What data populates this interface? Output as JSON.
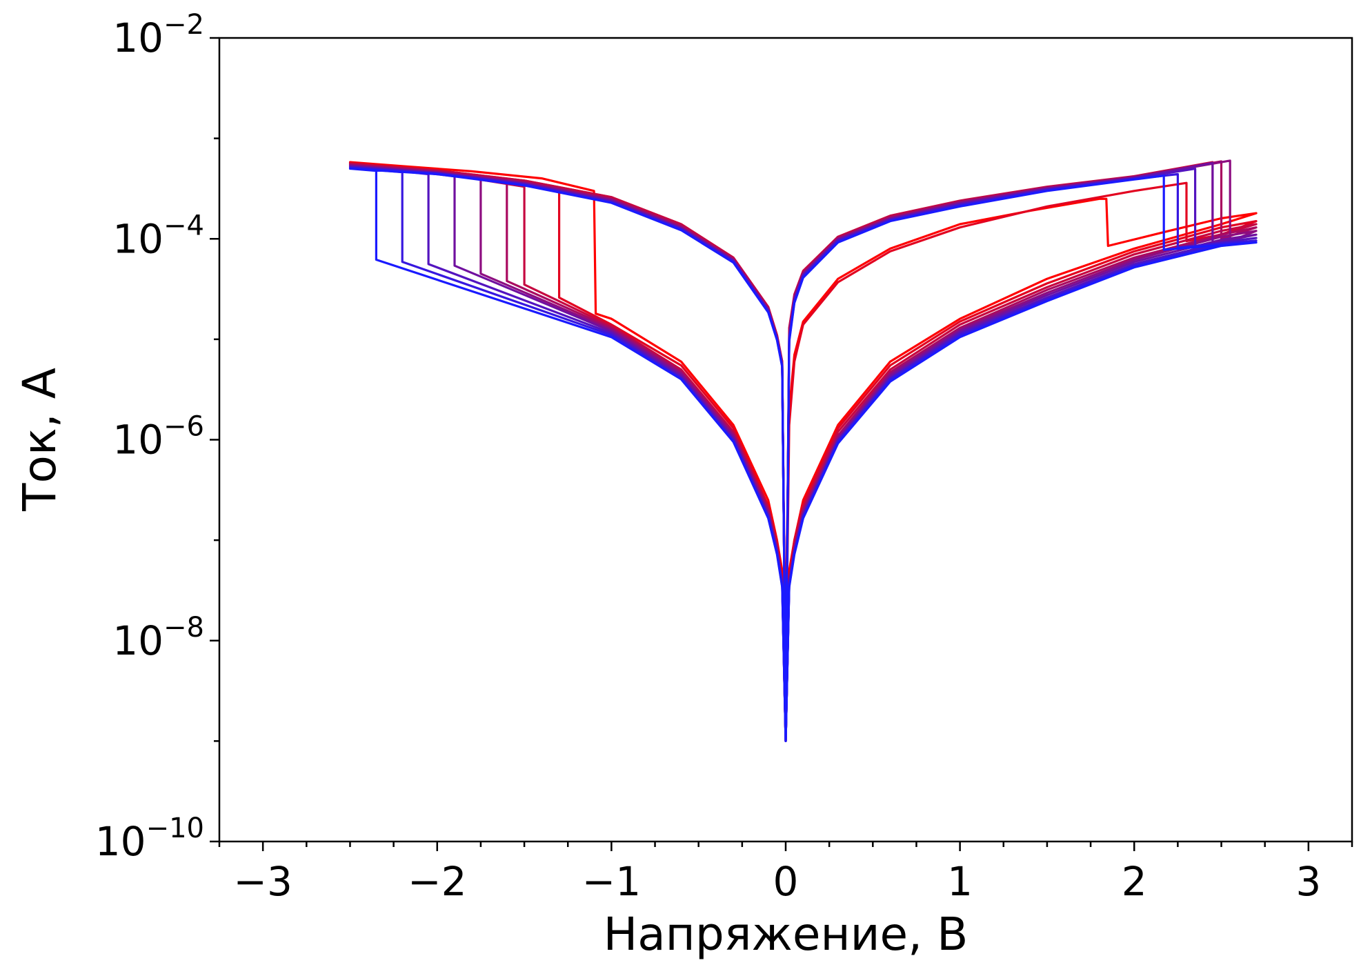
{
  "chart_data": {
    "type": "line",
    "title": "",
    "xlabel": "Напряжение, В",
    "ylabel": "Ток, А",
    "xlim": [
      -3.25,
      3.25
    ],
    "ylim": [
      1e-10,
      0.01
    ],
    "yscale": "log",
    "grid": false,
    "legend": "none",
    "xticks": [
      {
        "value": -3,
        "label": "−3"
      },
      {
        "value": -2,
        "label": "−2"
      },
      {
        "value": -1,
        "label": "−1"
      },
      {
        "value": 0,
        "label": "0"
      },
      {
        "value": 1,
        "label": "1"
      },
      {
        "value": 2,
        "label": "2"
      },
      {
        "value": 3,
        "label": "3"
      }
    ],
    "yticks": [
      {
        "value": 0.01,
        "base": "10",
        "exp": "−2"
      },
      {
        "value": 0.0001,
        "base": "10",
        "exp": "−4"
      },
      {
        "value": 1e-06,
        "base": "10",
        "exp": "−6"
      },
      {
        "value": 1e-08,
        "base": "10",
        "exp": "−8"
      },
      {
        "value": 1e-10,
        "base": "10",
        "exp": "−10"
      }
    ],
    "color_gradient": {
      "first_cycle": "#ff0000",
      "last_cycle": "#1a1aff"
    },
    "series": [
      {
        "cycle": 1,
        "x": [
          0,
          0.02,
          0.05,
          0.1,
          0.3,
          0.6,
          1.0,
          1.4,
          1.8,
          1.84,
          1.85,
          2.2,
          2.5,
          2.7,
          2.7,
          2.5,
          2.0,
          1.5,
          1.0,
          0.6,
          0.3,
          0.1,
          0.05,
          0.02,
          0,
          -0.02,
          -0.05,
          -0.1,
          -0.3,
          -0.6,
          -1.0,
          -1.09,
          -1.1,
          -1.4,
          -1.8,
          -2.2,
          -2.5,
          -2.5,
          -2.0,
          -1.5,
          -1.0,
          -0.6,
          -0.3,
          -0.1,
          -0.05,
          -0.02,
          0
        ],
        "y": [
          2e-08,
          2e-06,
          7e-06,
          1.5e-05,
          4e-05,
          8e-05,
          0.00014,
          0.00019,
          0.00025,
          0.00025,
          8.5e-05,
          0.00012,
          0.00016,
          0.00018,
          0.00018,
          0.00014,
          8e-05,
          4e-05,
          1.6e-05,
          6e-06,
          1.4e-06,
          2.5e-07,
          1e-07,
          5e-08,
          1e-09,
          5e-08,
          1e-07,
          2.5e-07,
          1.4e-06,
          6e-06,
          1.6e-05,
          1.8e-05,
          0.0003,
          0.0004,
          0.00047,
          0.00053,
          0.00058,
          0.00058,
          0.00047,
          0.00036,
          0.00024,
          0.00013,
          6e-05,
          2e-05,
          1e-05,
          6e-06,
          3e-09
        ]
      },
      {
        "cycle": 3,
        "x": [
          0,
          0.02,
          0.05,
          0.1,
          0.3,
          0.6,
          1.0,
          1.5,
          2.0,
          2.3,
          2.3,
          2.5,
          2.7,
          2.7,
          2.5,
          2.0,
          1.5,
          1.0,
          0.6,
          0.3,
          0.1,
          0.05,
          0.02,
          0,
          -0.02,
          -0.05,
          -0.1,
          -0.3,
          -0.6,
          -1.0,
          -1.3,
          -1.3,
          -1.6,
          -2.0,
          -2.3,
          -2.5,
          -2.5,
          -2.0,
          -1.5,
          -1.0,
          -0.6,
          -0.3,
          -0.1,
          -0.05,
          -0.02,
          0
        ],
        "y": [
          3e-09,
          1.4e-06,
          6e-06,
          1.4e-05,
          3.7e-05,
          7.5e-05,
          0.00013,
          0.00021,
          0.0003,
          0.00036,
          9.5e-05,
          0.00011,
          0.00015,
          0.00015,
          0.00013,
          7.5e-05,
          3.6e-05,
          1.5e-05,
          5.5e-06,
          1.3e-06,
          2.3e-07,
          1e-07,
          4e-08,
          1e-09,
          4e-08,
          9e-08,
          2.2e-07,
          1.3e-06,
          5.5e-06,
          1.4e-05,
          2.6e-05,
          0.00031,
          0.00039,
          0.00046,
          0.00052,
          0.00057,
          0.00057,
          0.00048,
          0.00038,
          0.00026,
          0.00014,
          6.5e-05,
          2.1e-05,
          1.1e-05,
          6e-06,
          2e-09
        ]
      },
      {
        "cycle": 6,
        "x": [
          0,
          0.02,
          0.05,
          0.1,
          0.3,
          0.6,
          1.0,
          1.5,
          2.0,
          2.45,
          2.45,
          2.7,
          2.7,
          2.5,
          2.0,
          1.5,
          1.0,
          0.6,
          0.3,
          0.1,
          0.05,
          0.02,
          0,
          -0.02,
          -0.05,
          -0.1,
          -0.3,
          -0.6,
          -1.0,
          -1.5,
          -1.5,
          -1.8,
          -2.1,
          -2.5,
          -2.5,
          -2.0,
          -1.5,
          -1.0,
          -0.6,
          -0.3,
          -0.1,
          -0.05,
          -0.02,
          0
        ],
        "y": [
          2e-09,
          1.3e-05,
          2.8e-05,
          4.8e-05,
          0.000105,
          0.00017,
          0.00024,
          0.00033,
          0.00042,
          0.00058,
          0.000105,
          0.00014,
          0.00014,
          0.00012,
          7e-05,
          3.3e-05,
          1.4e-05,
          5e-06,
          1.2e-06,
          2.1e-07,
          9e-08,
          4e-08,
          1e-09,
          4e-08,
          9e-08,
          2.1e-07,
          1.2e-06,
          5e-06,
          1.35e-05,
          3.5e-05,
          0.00033,
          0.0004,
          0.00047,
          0.00056,
          0.00056,
          0.00048,
          0.00038,
          0.00026,
          0.00014,
          6.5e-05,
          2.1e-05,
          1.1e-05,
          6e-06,
          2e-09
        ]
      },
      {
        "cycle": 9,
        "x": [
          0,
          0.02,
          0.05,
          0.1,
          0.3,
          0.6,
          1.0,
          1.5,
          2.0,
          2.5,
          2.5,
          2.7,
          2.7,
          2.5,
          2.0,
          1.5,
          1.0,
          0.6,
          0.3,
          0.1,
          0.05,
          0.02,
          0,
          -0.02,
          -0.05,
          -0.1,
          -0.3,
          -0.6,
          -1.0,
          -1.6,
          -1.6,
          -2.0,
          -2.5,
          -2.5,
          -2.0,
          -1.5,
          -1.0,
          -0.6,
          -0.3,
          -0.1,
          -0.05,
          -0.02,
          0
        ],
        "y": [
          2e-09,
          1.2e-05,
          2.7e-05,
          4.6e-05,
          0.000102,
          0.000165,
          0.000235,
          0.000325,
          0.000415,
          0.00059,
          0.0001,
          0.00013,
          0.00013,
          0.00011,
          6.5e-05,
          3.1e-05,
          1.3e-05,
          4.7e-06,
          1.1e-06,
          2e-07,
          8.5e-08,
          4e-08,
          1e-09,
          4e-08,
          8.5e-08,
          2e-07,
          1.15e-06,
          4.8e-06,
          1.3e-05,
          3.8e-05,
          0.00036,
          0.00045,
          0.00055,
          0.00055,
          0.00047,
          0.00037,
          0.00025,
          0.000135,
          6.3e-05,
          2e-05,
          1.05e-05,
          5.8e-06,
          2e-09
        ]
      },
      {
        "cycle": 12,
        "x": [
          0,
          0.02,
          0.05,
          0.1,
          0.3,
          0.6,
          1.0,
          1.5,
          2.0,
          2.55,
          2.55,
          2.7,
          2.7,
          2.5,
          2.0,
          1.5,
          1.0,
          0.6,
          0.3,
          0.1,
          0.05,
          0.02,
          0,
          -0.02,
          -0.05,
          -0.1,
          -0.3,
          -0.6,
          -1.0,
          -1.75,
          -1.75,
          -2.1,
          -2.5,
          -2.5,
          -2.0,
          -1.5,
          -1.0,
          -0.6,
          -0.3,
          -0.1,
          -0.05,
          -0.02,
          0
        ],
        "y": [
          2e-09,
          1.1e-05,
          2.6e-05,
          4.5e-05,
          0.0001,
          0.00016,
          0.00023,
          0.00032,
          0.00041,
          0.0006,
          9.5e-05,
          0.00012,
          0.00012,
          0.000105,
          6.2e-05,
          2.9e-05,
          1.25e-05,
          4.5e-06,
          1.05e-06,
          1.9e-07,
          8e-08,
          3.8e-08,
          1e-09,
          3.8e-08,
          8e-08,
          1.9e-07,
          1.1e-06,
          4.6e-06,
          1.25e-05,
          4.5e-05,
          0.00039,
          0.00047,
          0.00054,
          0.00054,
          0.00046,
          0.00036,
          0.000245,
          0.00013,
          6.2e-05,
          2e-05,
          1.05e-05,
          5.7e-06,
          2e-09
        ]
      },
      {
        "cycle": 15,
        "x": [
          0,
          0.02,
          0.05,
          0.1,
          0.3,
          0.6,
          1.0,
          1.5,
          2.0,
          2.45,
          2.45,
          2.7,
          2.7,
          2.5,
          2.0,
          1.5,
          1.0,
          0.6,
          0.3,
          0.1,
          0.05,
          0.02,
          0,
          -0.02,
          -0.05,
          -0.1,
          -0.3,
          -0.6,
          -1.0,
          -1.9,
          -1.9,
          -2.2,
          -2.5,
          -2.5,
          -2.0,
          -1.5,
          -1.0,
          -0.6,
          -0.3,
          -0.1,
          -0.05,
          -0.02,
          0
        ],
        "y": [
          2e-09,
          1.05e-05,
          2.5e-05,
          4.4e-05,
          9.8e-05,
          0.000158,
          0.000225,
          0.000315,
          0.000405,
          0.00057,
          9e-05,
          0.00011,
          0.00011,
          9.8e-05,
          5.9e-05,
          2.75e-05,
          1.2e-05,
          4.3e-06,
          1e-06,
          1.8e-07,
          7.8e-08,
          3.7e-08,
          1e-09,
          3.7e-08,
          7.8e-08,
          1.8e-07,
          1.05e-06,
          4.4e-06,
          1.2e-05,
          5.4e-05,
          0.00042,
          0.00048,
          0.00053,
          0.00053,
          0.000455,
          0.000355,
          0.00024,
          0.000128,
          6.1e-05,
          1.95e-05,
          1.02e-05,
          5.6e-06,
          2e-09
        ]
      },
      {
        "cycle": 18,
        "x": [
          0,
          0.02,
          0.05,
          0.1,
          0.3,
          0.6,
          1.0,
          1.5,
          2.0,
          2.35,
          2.35,
          2.7,
          2.7,
          2.5,
          2.0,
          1.5,
          1.0,
          0.6,
          0.3,
          0.1,
          0.05,
          0.02,
          0,
          -0.02,
          -0.05,
          -0.1,
          -0.3,
          -0.6,
          -1.0,
          -2.05,
          -2.05,
          -2.3,
          -2.5,
          -2.5,
          -2.0,
          -1.5,
          -1.0,
          -0.6,
          -0.3,
          -0.1,
          -0.05,
          -0.02,
          0
        ],
        "y": [
          2e-09,
          1e-05,
          2.4e-05,
          4.3e-05,
          9.6e-05,
          0.000155,
          0.00022,
          0.00031,
          0.0004,
          0.0005,
          8.5e-05,
          0.000102,
          0.000102,
          9.2e-05,
          5.6e-05,
          2.6e-05,
          1.15e-05,
          4.1e-06,
          9.8e-07,
          1.75e-07,
          7.6e-08,
          3.6e-08,
          1e-09,
          3.6e-08,
          7.6e-08,
          1.75e-07,
          1e-06,
          4.2e-06,
          1.15e-05,
          5.6e-05,
          0.00044,
          0.00049,
          0.00052,
          0.00052,
          0.00045,
          0.00035,
          0.000235,
          0.000126,
          6e-05,
          1.9e-05,
          1e-05,
          5.5e-06,
          2e-09
        ]
      },
      {
        "cycle": 21,
        "x": [
          0,
          0.02,
          0.05,
          0.1,
          0.3,
          0.6,
          1.0,
          1.5,
          2.0,
          2.25,
          2.25,
          2.7,
          2.7,
          2.5,
          2.0,
          1.5,
          1.0,
          0.6,
          0.3,
          0.1,
          0.05,
          0.02,
          0,
          -0.02,
          -0.05,
          -0.1,
          -0.3,
          -0.6,
          -1.0,
          -2.2,
          -2.2,
          -2.5,
          -2.5,
          -2.0,
          -1.5,
          -1.0,
          -0.6,
          -0.3,
          -0.1,
          -0.05,
          -0.02,
          0
        ],
        "y": [
          2e-09,
          9.8e-06,
          2.35e-05,
          4.2e-05,
          9.4e-05,
          0.000152,
          0.000215,
          0.000305,
          0.000395,
          0.00044,
          8.2e-05,
          9.6e-05,
          9.6e-05,
          8.8e-05,
          5.4e-05,
          2.5e-05,
          1.1e-05,
          4e-06,
          9.5e-07,
          1.7e-07,
          7.4e-08,
          3.5e-08,
          1e-09,
          3.5e-08,
          7.4e-08,
          1.7e-07,
          9.8e-07,
          4.1e-06,
          1.1e-05,
          5.9e-05,
          0.00046,
          0.00051,
          0.00051,
          0.000445,
          0.000345,
          0.00023,
          0.000124,
          5.9e-05,
          1.9e-05,
          1e-05,
          5.4e-06,
          2e-09
        ]
      },
      {
        "cycle": 24,
        "x": [
          0,
          0.02,
          0.05,
          0.1,
          0.3,
          0.6,
          1.0,
          1.5,
          2.0,
          2.17,
          2.17,
          2.7,
          2.7,
          2.5,
          2.0,
          1.5,
          1.0,
          0.6,
          0.3,
          0.1,
          0.05,
          0.02,
          0,
          -0.02,
          -0.05,
          -0.1,
          -0.3,
          -0.6,
          -1.0,
          -2.35,
          -2.35,
          -2.5,
          -2.5,
          -2.0,
          -1.5,
          -1.0,
          -0.6,
          -0.3,
          -0.1,
          -0.05,
          -0.02,
          0
        ],
        "y": [
          2e-09,
          9.5e-06,
          2.3e-05,
          4.1e-05,
          9.2e-05,
          0.00015,
          0.00021,
          0.0003,
          0.00039,
          0.000425,
          7.8e-05,
          9.2e-05,
          9.2e-05,
          8.5e-05,
          5.2e-05,
          2.4e-05,
          1.05e-05,
          3.8e-06,
          9.2e-07,
          1.65e-07,
          7.2e-08,
          3.4e-08,
          1e-09,
          3.4e-08,
          7.2e-08,
          1.65e-07,
          9.5e-07,
          4e-06,
          1.05e-05,
          6.2e-05,
          0.000475,
          0.0005,
          0.0005,
          0.00044,
          0.00034,
          0.000228,
          0.000122,
          5.8e-05,
          1.85e-05,
          9.8e-06,
          5.3e-06,
          2e-09
        ]
      }
    ]
  }
}
